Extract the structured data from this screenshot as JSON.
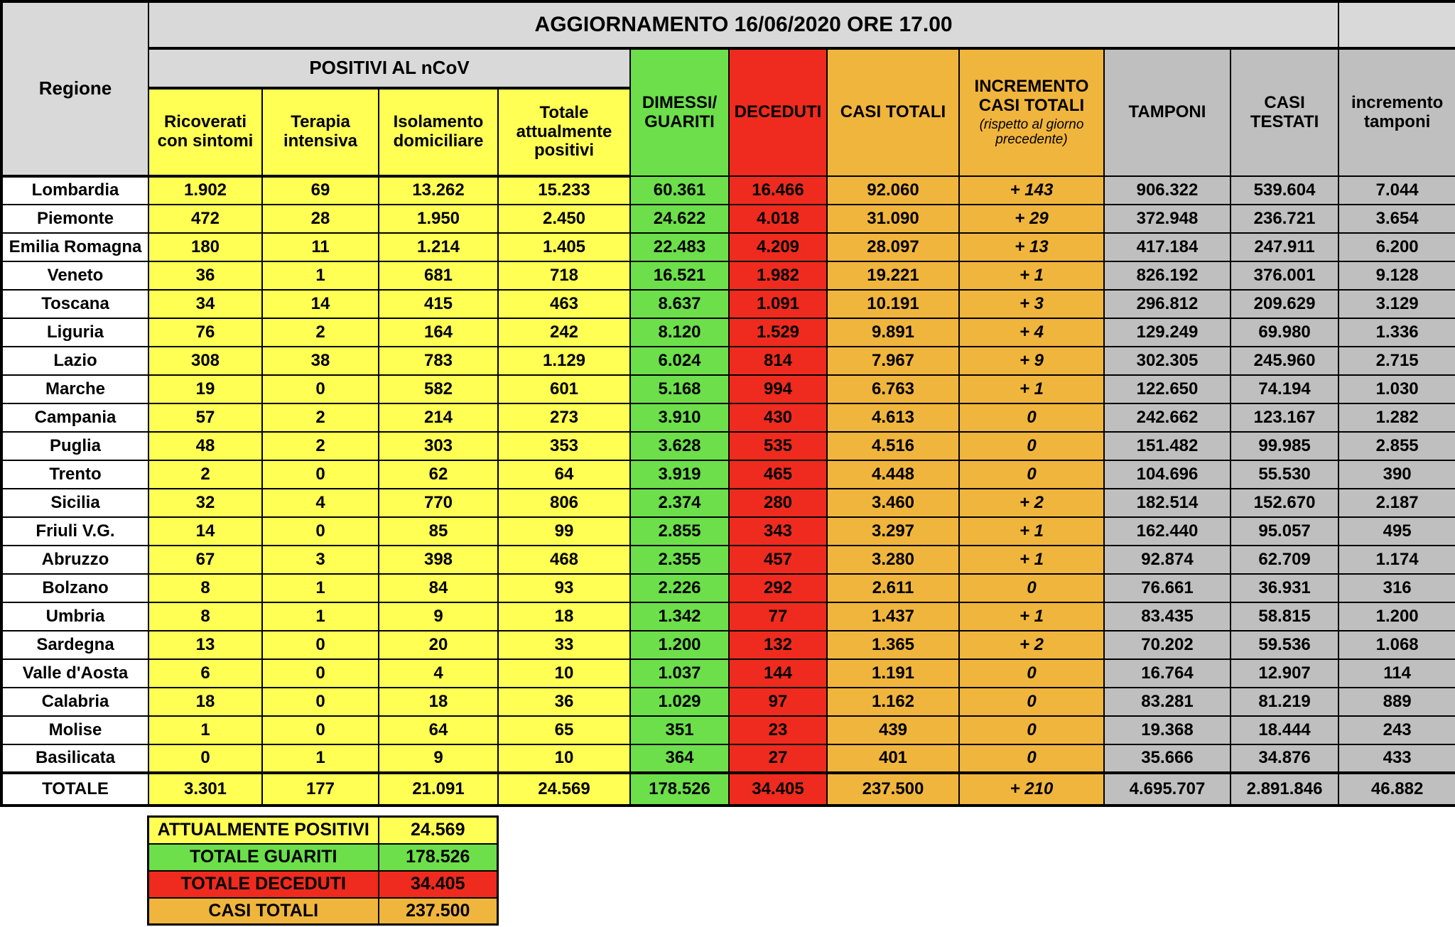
{
  "title": "AGGIORNAMENTO 16/06/2020 ORE 17.00",
  "colors": {
    "yellow": "#FFFF54",
    "green": "#6CDF4B",
    "red": "#EE2B1E",
    "orange": "#F0B53D",
    "gray_light": "#D9D9D9",
    "gray_dark": "#BFBFBF",
    "border": "#000000"
  },
  "table": {
    "corner_header": "Regione",
    "group_header": "POSITIVI AL nCoV",
    "sub_columns": [
      "Ricoverati con sintomi",
      "Terapia intensiva",
      "Isolamento domiciliare",
      "Totale attualmente positivi"
    ],
    "columns": [
      "DIMESSI/ GUARITI",
      "DECEDUTI",
      "CASI TOTALI",
      "INCREMENTO CASI  TOTALI",
      "TAMPONI",
      "CASI TESTATI",
      "incremento tamponi"
    ],
    "increment_note": "(rispetto al giorno precedente)",
    "rows": [
      {
        "region": "Lombardia",
        "values": [
          "1.902",
          "69",
          "13.262",
          "15.233",
          "60.361",
          "16.466",
          "92.060",
          "+ 143",
          "906.322",
          "539.604",
          "7.044"
        ]
      },
      {
        "region": "Piemonte",
        "values": [
          "472",
          "28",
          "1.950",
          "2.450",
          "24.622",
          "4.018",
          "31.090",
          "+ 29",
          "372.948",
          "236.721",
          "3.654"
        ]
      },
      {
        "region": "Emilia Romagna",
        "values": [
          "180",
          "11",
          "1.214",
          "1.405",
          "22.483",
          "4.209",
          "28.097",
          "+ 13",
          "417.184",
          "247.911",
          "6.200"
        ]
      },
      {
        "region": "Veneto",
        "values": [
          "36",
          "1",
          "681",
          "718",
          "16.521",
          "1.982",
          "19.221",
          "+ 1",
          "826.192",
          "376.001",
          "9.128"
        ]
      },
      {
        "region": "Toscana",
        "values": [
          "34",
          "14",
          "415",
          "463",
          "8.637",
          "1.091",
          "10.191",
          "+ 3",
          "296.812",
          "209.629",
          "3.129"
        ]
      },
      {
        "region": "Liguria",
        "values": [
          "76",
          "2",
          "164",
          "242",
          "8.120",
          "1.529",
          "9.891",
          "+ 4",
          "129.249",
          "69.980",
          "1.336"
        ]
      },
      {
        "region": "Lazio",
        "values": [
          "308",
          "38",
          "783",
          "1.129",
          "6.024",
          "814",
          "7.967",
          "+ 9",
          "302.305",
          "245.960",
          "2.715"
        ]
      },
      {
        "region": "Marche",
        "values": [
          "19",
          "0",
          "582",
          "601",
          "5.168",
          "994",
          "6.763",
          "+ 1",
          "122.650",
          "74.194",
          "1.030"
        ]
      },
      {
        "region": "Campania",
        "values": [
          "57",
          "2",
          "214",
          "273",
          "3.910",
          "430",
          "4.613",
          "0",
          "242.662",
          "123.167",
          "1.282"
        ]
      },
      {
        "region": "Puglia",
        "values": [
          "48",
          "2",
          "303",
          "353",
          "3.628",
          "535",
          "4.516",
          "0",
          "151.482",
          "99.985",
          "2.855"
        ]
      },
      {
        "region": "Trento",
        "values": [
          "2",
          "0",
          "62",
          "64",
          "3.919",
          "465",
          "4.448",
          "0",
          "104.696",
          "55.530",
          "390"
        ]
      },
      {
        "region": "Sicilia",
        "values": [
          "32",
          "4",
          "770",
          "806",
          "2.374",
          "280",
          "3.460",
          "+ 2",
          "182.514",
          "152.670",
          "2.187"
        ]
      },
      {
        "region": "Friuli V.G.",
        "values": [
          "14",
          "0",
          "85",
          "99",
          "2.855",
          "343",
          "3.297",
          "+ 1",
          "162.440",
          "95.057",
          "495"
        ]
      },
      {
        "region": "Abruzzo",
        "values": [
          "67",
          "3",
          "398",
          "468",
          "2.355",
          "457",
          "3.280",
          "+ 1",
          "92.874",
          "62.709",
          "1.174"
        ]
      },
      {
        "region": "Bolzano",
        "values": [
          "8",
          "1",
          "84",
          "93",
          "2.226",
          "292",
          "2.611",
          "0",
          "76.661",
          "36.931",
          "316"
        ]
      },
      {
        "region": "Umbria",
        "values": [
          "8",
          "1",
          "9",
          "18",
          "1.342",
          "77",
          "1.437",
          "+ 1",
          "83.435",
          "58.815",
          "1.200"
        ]
      },
      {
        "region": "Sardegna",
        "values": [
          "13",
          "0",
          "20",
          "33",
          "1.200",
          "132",
          "1.365",
          "+ 2",
          "70.202",
          "59.536",
          "1.068"
        ]
      },
      {
        "region": "Valle d'Aosta",
        "values": [
          "6",
          "0",
          "4",
          "10",
          "1.037",
          "144",
          "1.191",
          "0",
          "16.764",
          "12.907",
          "114"
        ]
      },
      {
        "region": "Calabria",
        "values": [
          "18",
          "0",
          "18",
          "36",
          "1.029",
          "97",
          "1.162",
          "0",
          "83.281",
          "81.219",
          "889"
        ]
      },
      {
        "region": "Molise",
        "values": [
          "1",
          "0",
          "64",
          "65",
          "351",
          "23",
          "439",
          "0",
          "19.368",
          "18.444",
          "243"
        ]
      },
      {
        "region": "Basilicata",
        "values": [
          "0",
          "1",
          "9",
          "10",
          "364",
          "27",
          "401",
          "0",
          "35.666",
          "34.876",
          "433"
        ]
      }
    ],
    "total_row": {
      "region": "TOTALE",
      "values": [
        "3.301",
        "177",
        "21.091",
        "24.569",
        "178.526",
        "34.405",
        "237.500",
        "+ 210",
        "4.695.707",
        "2.891.846",
        "46.882"
      ]
    }
  },
  "summary": {
    "rows": [
      {
        "label": "ATTUALMENTE POSITIVI",
        "value": "24.569",
        "color": "#FFFF54"
      },
      {
        "label": "TOTALE GUARITI",
        "value": "178.526",
        "color": "#6CDF4B"
      },
      {
        "label": "TOTALE DECEDUTI",
        "value": "34.405",
        "color": "#EE2B1E"
      },
      {
        "label": "CASI TOTALI",
        "value": "237.500",
        "color": "#F0B53D"
      }
    ]
  }
}
